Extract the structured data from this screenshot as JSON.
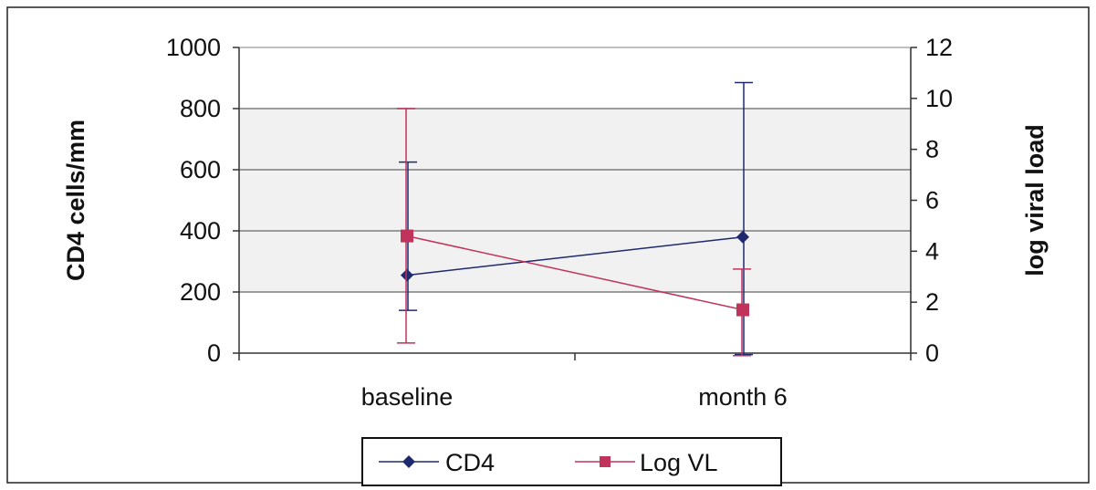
{
  "chart_data": {
    "type": "line",
    "categories": [
      "baseline",
      "month 6"
    ],
    "ylabel_left": "CD4 cells/mm",
    "ylabel_right": "log viral load",
    "ylim_left": [
      0,
      1000
    ],
    "yticks_left": [
      "0",
      "200",
      "400",
      "600",
      "800",
      "1000"
    ],
    "ylim_right": [
      0,
      12
    ],
    "yticks_right": [
      "0",
      "2",
      "4",
      "6",
      "8",
      "10",
      "12"
    ],
    "grid": true,
    "legend_position": "bottom",
    "series": [
      {
        "name": "CD4",
        "axis": "left",
        "marker": "diamond",
        "color": "#1f2a6e",
        "values": [
          255,
          380
        ],
        "error_low": [
          140,
          -5
        ],
        "error_high": [
          625,
          885
        ]
      },
      {
        "name": "Log VL",
        "axis": "right",
        "marker": "square",
        "color": "#c0335a",
        "values": [
          4.6,
          1.7
        ],
        "error_low": [
          0.4,
          -0.1
        ],
        "error_high": [
          9.6,
          3.3
        ]
      }
    ]
  }
}
